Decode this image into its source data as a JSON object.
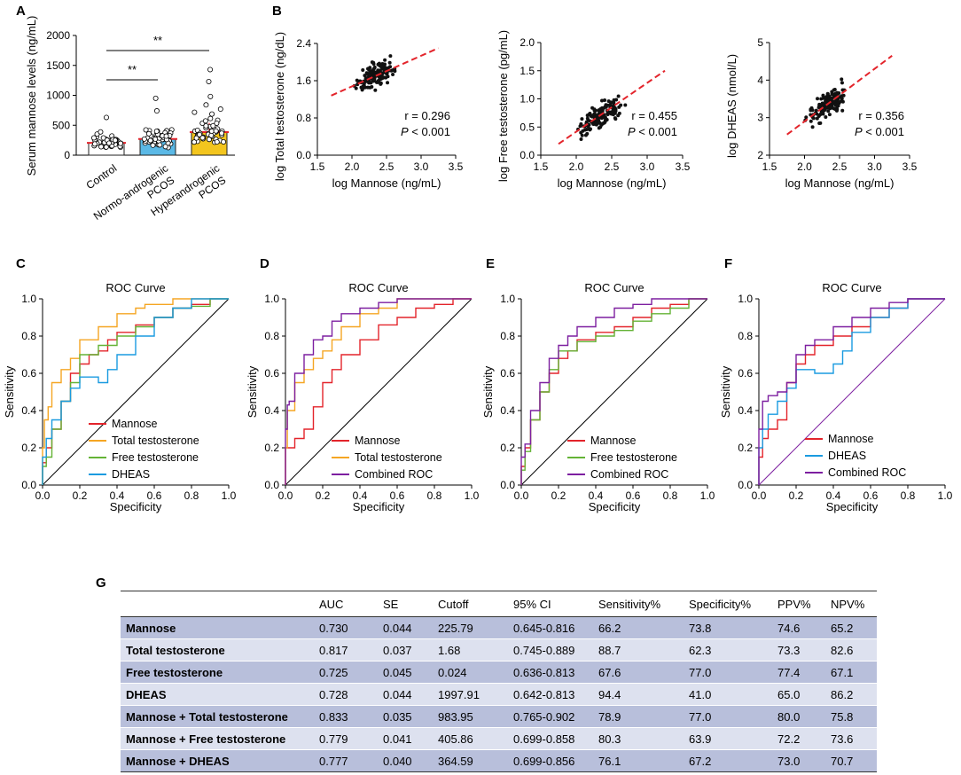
{
  "panels": {
    "A": "A",
    "B": "B",
    "C": "C",
    "D": "D",
    "E": "E",
    "F": "F",
    "G": "G"
  },
  "chart_data": [
    {
      "id": "A",
      "type": "bar",
      "ylabel": "Serum mannose levels (ng/mL)",
      "ylim": [
        0,
        2000
      ],
      "yticks": [
        "0",
        "500",
        "1000",
        "1500",
        "2000"
      ],
      "categories": [
        "Control",
        "Normo-androgenic PCOS",
        "Hyperandrogenic PCOS"
      ],
      "category_lines": [
        [
          "Control"
        ],
        [
          "Normo-androgenic",
          "PCOS"
        ],
        [
          "Hyperandrogenic",
          "PCOS"
        ]
      ],
      "values": [
        205,
        270,
        385
      ],
      "colors": [
        "#ffffff",
        "#5bb9e6",
        "#f3c51e"
      ],
      "significance": [
        {
          "from": 0,
          "to": 1,
          "label": "**"
        },
        {
          "from": 0,
          "to": 2,
          "label": "**"
        }
      ]
    },
    {
      "id": "B1",
      "type": "scatter",
      "xlabel": "log Mannose (ng/mL)",
      "ylabel": "log Total testosterone (ng/dL)",
      "xlim": [
        1.5,
        3.5
      ],
      "ylim": [
        0,
        2.4
      ],
      "xticks": [
        "1.5",
        "2.0",
        "2.5",
        "3.0",
        "3.5"
      ],
      "yticks": [
        "0.0",
        "0.8",
        "1.6",
        "2.4"
      ],
      "fit": [
        [
          1.7,
          1.28
        ],
        [
          3.25,
          2.3
        ]
      ],
      "r": "r = 0.296",
      "p_label": "P",
      "p_rest": " < 0.001"
    },
    {
      "id": "B2",
      "type": "scatter",
      "xlabel": "log Mannose (ng/mL)",
      "ylabel": "log Free testosterone (pg/mL)",
      "xlim": [
        1.5,
        3.5
      ],
      "ylim": [
        0,
        2.0
      ],
      "xticks": [
        "1.5",
        "2.0",
        "2.5",
        "3.0",
        "3.5"
      ],
      "yticks": [
        "0.0",
        "0.5",
        "1.0",
        "1.5",
        "2.0"
      ],
      "fit": [
        [
          1.75,
          0.2
        ],
        [
          3.25,
          1.5
        ]
      ],
      "r": "r = 0.455",
      "p_label": "P",
      "p_rest": " < 0.001"
    },
    {
      "id": "B3",
      "type": "scatter",
      "xlabel": "log Mannose (ng/mL)",
      "ylabel": "log DHEAS (nmol/L)",
      "xlim": [
        1.5,
        3.5
      ],
      "ylim": [
        2,
        5
      ],
      "xticks": [
        "1.5",
        "2.0",
        "2.5",
        "3.0",
        "3.5"
      ],
      "yticks": [
        "2",
        "3",
        "4",
        "5"
      ],
      "fit": [
        [
          1.75,
          2.55
        ],
        [
          3.25,
          4.65
        ]
      ],
      "r": "r = 0.356",
      "p_label": "P",
      "p_rest": " < 0.001"
    },
    {
      "id": "C",
      "type": "line",
      "title": "ROC Curve",
      "xlabel": "Specificity",
      "ylabel": "Sensitivity",
      "xlim": [
        0,
        1
      ],
      "ylim": [
        0,
        1
      ],
      "ticks": [
        "0.0",
        "0.2",
        "0.4",
        "0.6",
        "0.8",
        "1.0"
      ],
      "series": [
        {
          "name": "Mannose",
          "color": "#e3242b",
          "points": [
            [
              0,
              0
            ],
            [
              0.02,
              0.12
            ],
            [
              0.05,
              0.2
            ],
            [
              0.1,
              0.3
            ],
            [
              0.15,
              0.45
            ],
            [
              0.2,
              0.6
            ],
            [
              0.25,
              0.65
            ],
            [
              0.3,
              0.7
            ],
            [
              0.35,
              0.72
            ],
            [
              0.4,
              0.78
            ],
            [
              0.5,
              0.82
            ],
            [
              0.6,
              0.86
            ],
            [
              0.7,
              0.9
            ],
            [
              0.8,
              0.95
            ],
            [
              0.9,
              0.97
            ],
            [
              1,
              1
            ]
          ]
        },
        {
          "name": "Total testosterone",
          "color": "#f5a623",
          "points": [
            [
              0,
              0
            ],
            [
              0.01,
              0.2
            ],
            [
              0.03,
              0.35
            ],
            [
              0.05,
              0.42
            ],
            [
              0.1,
              0.55
            ],
            [
              0.15,
              0.62
            ],
            [
              0.2,
              0.68
            ],
            [
              0.3,
              0.78
            ],
            [
              0.4,
              0.85
            ],
            [
              0.5,
              0.92
            ],
            [
              0.55,
              0.95
            ],
            [
              0.7,
              0.97
            ],
            [
              0.8,
              1.0
            ],
            [
              1,
              1
            ]
          ]
        },
        {
          "name": "Free testosterone",
          "color": "#64b336",
          "points": [
            [
              0,
              0
            ],
            [
              0.02,
              0.1
            ],
            [
              0.05,
              0.15
            ],
            [
              0.1,
              0.3
            ],
            [
              0.15,
              0.45
            ],
            [
              0.2,
              0.55
            ],
            [
              0.3,
              0.7
            ],
            [
              0.4,
              0.75
            ],
            [
              0.5,
              0.8
            ],
            [
              0.6,
              0.85
            ],
            [
              0.7,
              0.9
            ],
            [
              0.8,
              0.95
            ],
            [
              0.9,
              0.96
            ],
            [
              1,
              1
            ]
          ]
        },
        {
          "name": "DHEAS",
          "color": "#1a9be0",
          "points": [
            [
              0,
              0
            ],
            [
              0.02,
              0.15
            ],
            [
              0.05,
              0.25
            ],
            [
              0.1,
              0.35
            ],
            [
              0.15,
              0.45
            ],
            [
              0.2,
              0.52
            ],
            [
              0.3,
              0.58
            ],
            [
              0.35,
              0.55
            ],
            [
              0.4,
              0.62
            ],
            [
              0.5,
              0.7
            ],
            [
              0.6,
              0.8
            ],
            [
              0.7,
              0.9
            ],
            [
              0.8,
              0.95
            ],
            [
              1,
              1
            ]
          ]
        }
      ]
    },
    {
      "id": "D",
      "type": "line",
      "title": "ROC Curve",
      "xlabel": "Specificity",
      "ylabel": "Sensitivity",
      "xlim": [
        0,
        1
      ],
      "ylim": [
        0,
        1
      ],
      "ticks": [
        "0.0",
        "0.2",
        "0.4",
        "0.6",
        "0.8",
        "1.0"
      ],
      "series": [
        {
          "name": "Mannose",
          "color": "#e3242b",
          "points": [
            [
              0,
              0
            ],
            [
              0.05,
              0.2
            ],
            [
              0.1,
              0.25
            ],
            [
              0.15,
              0.3
            ],
            [
              0.2,
              0.42
            ],
            [
              0.25,
              0.55
            ],
            [
              0.3,
              0.62
            ],
            [
              0.4,
              0.7
            ],
            [
              0.5,
              0.78
            ],
            [
              0.6,
              0.86
            ],
            [
              0.7,
              0.9
            ],
            [
              0.8,
              0.95
            ],
            [
              0.9,
              0.97
            ],
            [
              1,
              1
            ]
          ]
        },
        {
          "name": "Total testosterone",
          "color": "#f5a623",
          "points": [
            [
              0,
              0
            ],
            [
              0.01,
              0.2
            ],
            [
              0.05,
              0.4
            ],
            [
              0.1,
              0.55
            ],
            [
              0.15,
              0.62
            ],
            [
              0.2,
              0.68
            ],
            [
              0.25,
              0.72
            ],
            [
              0.3,
              0.78
            ],
            [
              0.4,
              0.85
            ],
            [
              0.5,
              0.92
            ],
            [
              0.6,
              0.95
            ],
            [
              0.8,
              1.0
            ],
            [
              1,
              1
            ]
          ]
        },
        {
          "name": "Combined ROC",
          "color": "#7d1fa0",
          "points": [
            [
              0,
              0
            ],
            [
              0.01,
              0.3
            ],
            [
              0.02,
              0.43
            ],
            [
              0.05,
              0.45
            ],
            [
              0.1,
              0.6
            ],
            [
              0.15,
              0.7
            ],
            [
              0.2,
              0.78
            ],
            [
              0.25,
              0.8
            ],
            [
              0.3,
              0.88
            ],
            [
              0.4,
              0.92
            ],
            [
              0.5,
              0.95
            ],
            [
              0.6,
              0.98
            ],
            [
              0.7,
              1.0
            ],
            [
              1,
              1
            ]
          ]
        }
      ]
    },
    {
      "id": "E",
      "type": "line",
      "title": "ROC Curve",
      "xlabel": "Specificity",
      "ylabel": "Sensitivity",
      "xlim": [
        0,
        1
      ],
      "ylim": [
        0,
        1
      ],
      "ticks": [
        "0.0",
        "0.2",
        "0.4",
        "0.6",
        "0.8",
        "1.0"
      ],
      "series": [
        {
          "name": "Mannose",
          "color": "#e3242b",
          "points": [
            [
              0,
              0
            ],
            [
              0.02,
              0.1
            ],
            [
              0.05,
              0.2
            ],
            [
              0.1,
              0.35
            ],
            [
              0.15,
              0.5
            ],
            [
              0.2,
              0.6
            ],
            [
              0.25,
              0.68
            ],
            [
              0.3,
              0.72
            ],
            [
              0.4,
              0.78
            ],
            [
              0.5,
              0.82
            ],
            [
              0.6,
              0.85
            ],
            [
              0.7,
              0.9
            ],
            [
              0.8,
              0.95
            ],
            [
              0.9,
              0.97
            ],
            [
              1,
              1
            ]
          ]
        },
        {
          "name": "Free testosterone",
          "color": "#64b336",
          "points": [
            [
              0,
              0
            ],
            [
              0.02,
              0.08
            ],
            [
              0.05,
              0.18
            ],
            [
              0.1,
              0.35
            ],
            [
              0.15,
              0.5
            ],
            [
              0.2,
              0.62
            ],
            [
              0.3,
              0.72
            ],
            [
              0.4,
              0.77
            ],
            [
              0.5,
              0.8
            ],
            [
              0.6,
              0.83
            ],
            [
              0.7,
              0.88
            ],
            [
              0.8,
              0.92
            ],
            [
              0.9,
              0.95
            ],
            [
              1,
              1
            ]
          ]
        },
        {
          "name": "Combined ROC",
          "color": "#7d1fa0",
          "points": [
            [
              0,
              0
            ],
            [
              0.02,
              0.15
            ],
            [
              0.05,
              0.22
            ],
            [
              0.1,
              0.4
            ],
            [
              0.15,
              0.55
            ],
            [
              0.2,
              0.68
            ],
            [
              0.25,
              0.75
            ],
            [
              0.3,
              0.8
            ],
            [
              0.4,
              0.85
            ],
            [
              0.5,
              0.9
            ],
            [
              0.6,
              0.95
            ],
            [
              0.7,
              0.97
            ],
            [
              0.8,
              1.0
            ],
            [
              1,
              1
            ]
          ]
        }
      ]
    },
    {
      "id": "F",
      "type": "line",
      "title": "ROC Curve",
      "xlabel": "Specificity",
      "ylabel": "Sensitivity",
      "xlim": [
        0,
        1
      ],
      "ylim": [
        0,
        1
      ],
      "ticks": [
        "0.0",
        "0.2",
        "0.4",
        "0.6",
        "0.8",
        "1.0"
      ],
      "series": [
        {
          "name": "Mannose",
          "color": "#e3242b",
          "points": [
            [
              0,
              0
            ],
            [
              0.02,
              0.15
            ],
            [
              0.05,
              0.25
            ],
            [
              0.1,
              0.3
            ],
            [
              0.15,
              0.35
            ],
            [
              0.2,
              0.55
            ],
            [
              0.25,
              0.65
            ],
            [
              0.3,
              0.7
            ],
            [
              0.4,
              0.75
            ],
            [
              0.5,
              0.8
            ],
            [
              0.6,
              0.85
            ],
            [
              0.7,
              0.9
            ],
            [
              0.8,
              0.95
            ],
            [
              1,
              1
            ]
          ]
        },
        {
          "name": "DHEAS",
          "color": "#1a9be0",
          "points": [
            [
              0,
              0
            ],
            [
              0.02,
              0.2
            ],
            [
              0.05,
              0.3
            ],
            [
              0.1,
              0.38
            ],
            [
              0.15,
              0.45
            ],
            [
              0.2,
              0.52
            ],
            [
              0.3,
              0.62
            ],
            [
              0.4,
              0.6
            ],
            [
              0.45,
              0.65
            ],
            [
              0.5,
              0.72
            ],
            [
              0.6,
              0.82
            ],
            [
              0.7,
              0.9
            ],
            [
              0.8,
              0.95
            ],
            [
              1,
              1
            ]
          ]
        },
        {
          "name": "Combined ROC",
          "color": "#7d1fa0",
          "points": [
            [
              0,
              0
            ],
            [
              0.02,
              0.3
            ],
            [
              0.05,
              0.45
            ],
            [
              0.1,
              0.48
            ],
            [
              0.15,
              0.5
            ],
            [
              0.2,
              0.55
            ],
            [
              0.25,
              0.7
            ],
            [
              0.3,
              0.75
            ],
            [
              0.4,
              0.78
            ],
            [
              0.5,
              0.85
            ],
            [
              0.6,
              0.9
            ],
            [
              0.7,
              0.95
            ],
            [
              0.8,
              0.98
            ],
            [
              1,
              1
            ]
          ]
        }
      ]
    }
  ],
  "table": {
    "headers": [
      "",
      "AUC",
      "SE",
      "Cutoff",
      "95% CI",
      "Sensitivity%",
      "Specificity%",
      "PPV%",
      "NPV%"
    ],
    "rows": [
      [
        "Mannose",
        "0.730",
        "0.044",
        "225.79",
        "0.645-0.816",
        "66.2",
        "73.8",
        "74.6",
        "65.2"
      ],
      [
        "Total testosterone",
        "0.817",
        "0.037",
        "1.68",
        "0.745-0.889",
        "88.7",
        "62.3",
        "73.3",
        "82.6"
      ],
      [
        "Free testosterone",
        "0.725",
        "0.045",
        "0.024",
        "0.636-0.813",
        "67.6",
        "77.0",
        "77.4",
        "67.1"
      ],
      [
        "DHEAS",
        "0.728",
        "0.044",
        "1997.91",
        "0.642-0.813",
        "94.4",
        "41.0",
        "65.0",
        "86.2"
      ],
      [
        "Mannose + Total testosterone",
        "0.833",
        "0.035",
        "983.95",
        "0.765-0.902",
        "78.9",
        "77.0",
        "80.0",
        "75.8"
      ],
      [
        "Mannose + Free testosterone",
        "0.779",
        "0.041",
        "405.86",
        "0.699-0.858",
        "80.3",
        "63.9",
        "72.2",
        "73.6"
      ],
      [
        "Mannose + DHEAS",
        "0.777",
        "0.040",
        "364.59",
        "0.699-0.856",
        "76.1",
        "67.2",
        "73.0",
        "70.7"
      ]
    ]
  }
}
